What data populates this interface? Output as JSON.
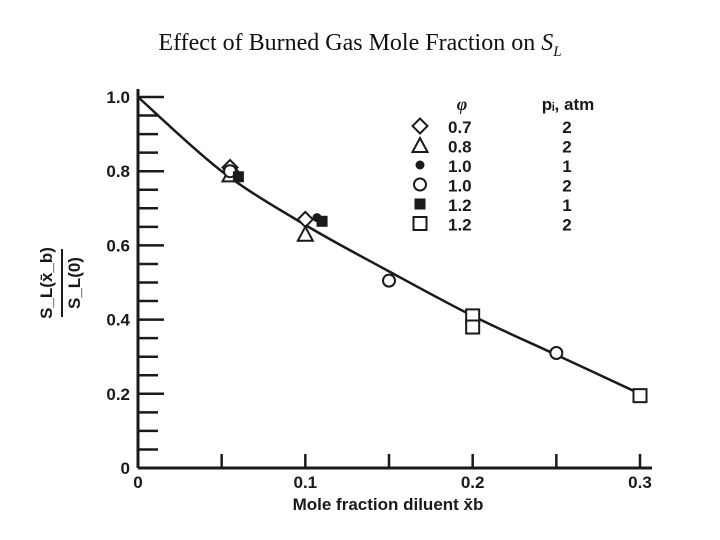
{
  "slide": {
    "title_text": "Effect of Burned Gas Mole Fraction on ",
    "title_symbol": "S",
    "title_subscript": "L"
  },
  "chart_data": {
    "type": "scatter",
    "title": "",
    "xlabel": "Mole fraction diluent x̄b",
    "ylabel": "SL(x̄b) / SL(0)",
    "ylabel_num": "S_L(x̄_b)",
    "ylabel_den": "S_L(0)",
    "xlim": [
      0,
      0.3
    ],
    "ylim": [
      0,
      1.0
    ],
    "x_ticks": [
      {
        "value": 0,
        "label": "0"
      },
      {
        "value": 0.1,
        "label": "0.1"
      },
      {
        "value": 0.2,
        "label": "0.2"
      },
      {
        "value": 0.3,
        "label": "0.3"
      }
    ],
    "y_ticks": [
      {
        "value": 0,
        "label": "0"
      },
      {
        "value": 0.2,
        "label": "0.2"
      },
      {
        "value": 0.4,
        "label": "0.4"
      },
      {
        "value": 0.6,
        "label": "0.6"
      },
      {
        "value": 0.8,
        "label": "0.8"
      },
      {
        "value": 1.0,
        "label": "1.0"
      }
    ],
    "legend": {
      "placement": "top-right",
      "header_phi": "φ",
      "header_p": "pᵢ, atm",
      "entries": [
        {
          "marker": "diamond",
          "phi": "0.7",
          "p": "2"
        },
        {
          "marker": "triangle",
          "phi": "0.8",
          "p": "2"
        },
        {
          "marker": "filled-circle",
          "phi": "1.0",
          "p": "1"
        },
        {
          "marker": "open-circle",
          "phi": "1.0",
          "p": "2"
        },
        {
          "marker": "filled-square",
          "phi": "1.2",
          "p": "1"
        },
        {
          "marker": "open-square",
          "phi": "1.2",
          "p": "2"
        }
      ]
    },
    "fit_curve": {
      "x": [
        0,
        0.05,
        0.1,
        0.15,
        0.2,
        0.25,
        0.3
      ],
      "y": [
        1.0,
        0.8,
        0.655,
        0.53,
        0.41,
        0.305,
        0.2
      ]
    },
    "series": [
      {
        "marker": "diamond",
        "points": [
          {
            "x": 0.055,
            "y": 0.81
          },
          {
            "x": 0.1,
            "y": 0.67
          }
        ]
      },
      {
        "marker": "triangle",
        "points": [
          {
            "x": 0.055,
            "y": 0.79
          },
          {
            "x": 0.1,
            "y": 0.63
          }
        ]
      },
      {
        "marker": "filled-circle",
        "points": [
          {
            "x": 0.058,
            "y": 0.795
          },
          {
            "x": 0.107,
            "y": 0.675
          }
        ]
      },
      {
        "marker": "open-circle",
        "points": [
          {
            "x": 0.055,
            "y": 0.8
          },
          {
            "x": 0.15,
            "y": 0.505
          },
          {
            "x": 0.25,
            "y": 0.31
          }
        ]
      },
      {
        "marker": "filled-square",
        "points": [
          {
            "x": 0.06,
            "y": 0.785
          },
          {
            "x": 0.11,
            "y": 0.665
          }
        ]
      },
      {
        "marker": "open-square",
        "points": [
          {
            "x": 0.2,
            "y": 0.41
          },
          {
            "x": 0.2,
            "y": 0.38
          },
          {
            "x": 0.3,
            "y": 0.195
          }
        ]
      }
    ]
  }
}
